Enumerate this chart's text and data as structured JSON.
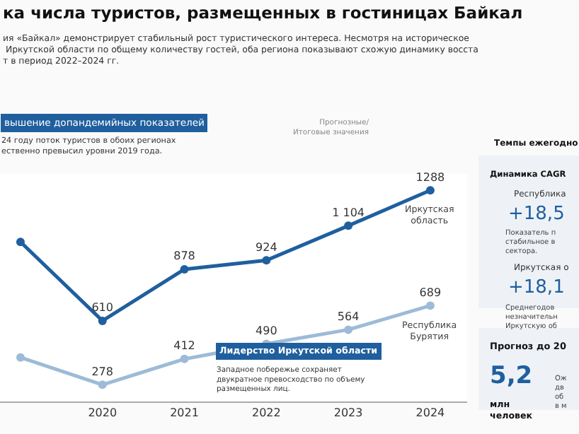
{
  "chart_data": {
    "type": "line",
    "title": "ка числа туристов, размещенных в гостиницах Байкал",
    "subtitle": "ия «Байкал» демонстрирует стабильный рост туристического интереса. Несмотря на историческое\n Иркутской области по общему количеству гостей, оба региона показывают схожую динамику восста\nт в период 2022–2024 гг.",
    "categories": [
      null,
      "2020",
      "2021",
      "2022",
      "2023",
      "2024"
    ],
    "series": [
      {
        "name": "Иркутская\nобласть",
        "color": "#1f5f9e",
        "values": [
          1020,
          610,
          878,
          924,
          1104,
          1288
        ],
        "value_labels": [
          null,
          "610",
          "878",
          "924",
          "1 104",
          "1288"
        ]
      },
      {
        "name": "Республика\nБурятия",
        "color": "#9dbbd8",
        "values": [
          420,
          278,
          412,
          490,
          564,
          689
        ],
        "value_labels": [
          null,
          "278",
          "412",
          "490",
          "564",
          "689"
        ]
      }
    ],
    "marker": "circle",
    "line_style": "solid",
    "legend": false,
    "annotations": [
      "вышение допандемийных показателей",
      "24 году поток туристов в обоих регионах\nественно превысил уровни 2019 года.",
      "Прогнозные/\nИтоговые значения",
      "Лидерство Иркутской области",
      "Западное побережье сохраняет\nдвукратное превосходство по объему\nразмещенных лиц.",
      "Темпы ежегодно",
      "Динамика CAGR",
      "Республика",
      "+18,5",
      "Показатель п\nстабильное в\nсектора.",
      "Иркутская о",
      "+18,1",
      "Среднегодов\nнезначительн\nИркутскую об",
      "Прогноз до 20",
      "5,2",
      "млн\nчеловек",
      "Ож\nдв\nоб\nв м"
    ]
  }
}
